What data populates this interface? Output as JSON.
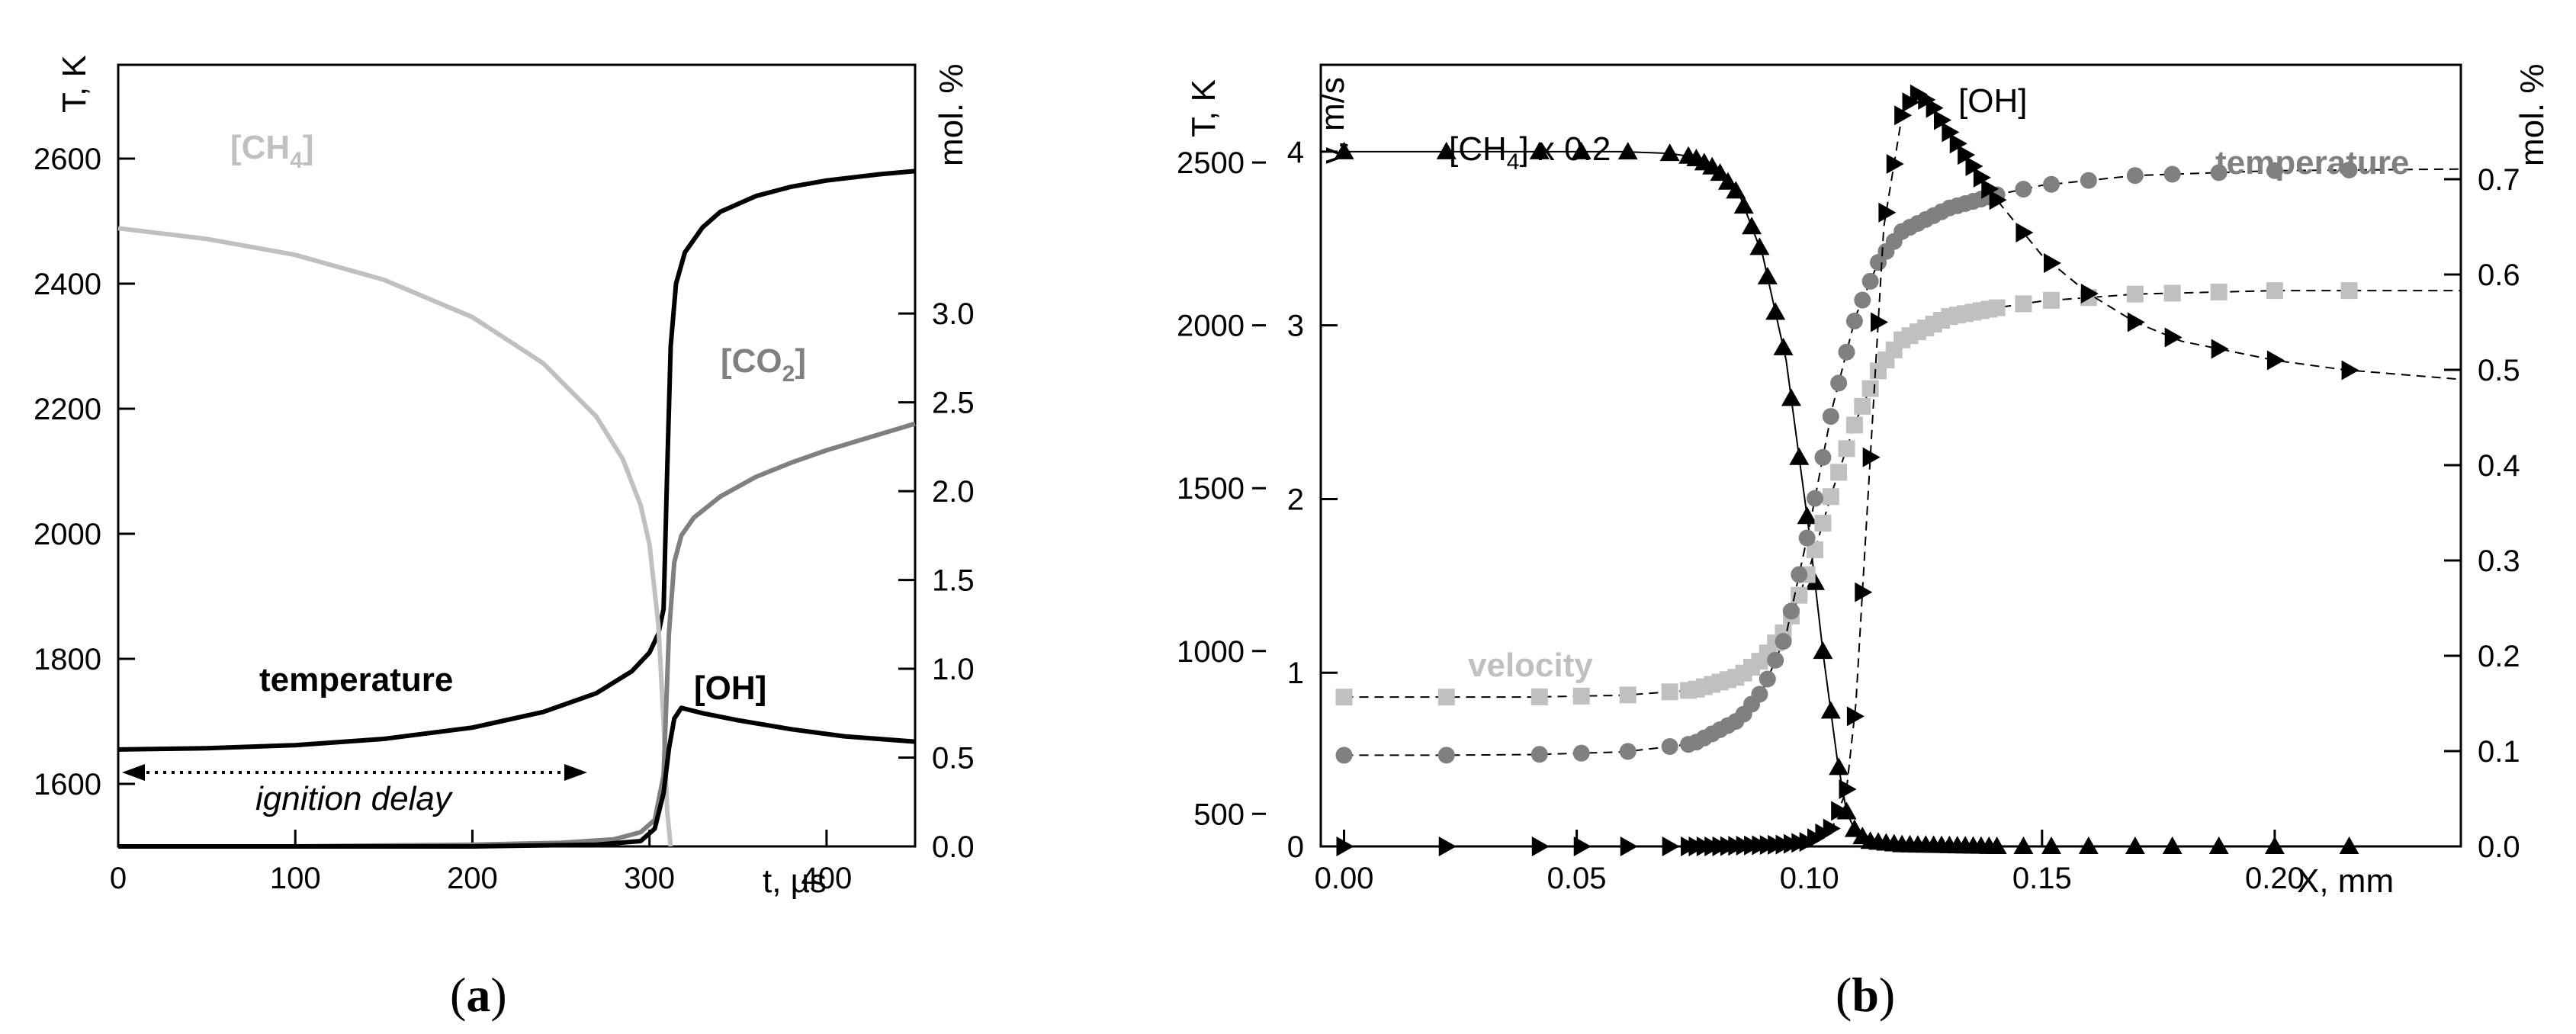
{
  "chart_data": [
    {
      "type": "line",
      "panel": "a",
      "caption_open": "(",
      "caption_letter": "a",
      "caption_close": ")",
      "xlabel": "t, µs",
      "ylabel_left": "T, K",
      "ylabel_right": "mol. %",
      "xlim": [
        0,
        450
      ],
      "ylim_left": [
        1500,
        2750
      ],
      "ylim_right": [
        0,
        4.4
      ],
      "x_ticks": [
        "0",
        "100",
        "200",
        "300",
        "400"
      ],
      "y_left_ticks": [
        "1600",
        "1800",
        "2000",
        "2200",
        "2400",
        "2600"
      ],
      "y_right_ticks": [
        "0.0",
        "0.5",
        "1.0",
        "1.5",
        "2.0",
        "2.5",
        "3.0"
      ],
      "annotation": "ignition delay",
      "series": [
        {
          "name": "temperature",
          "label": "temperature",
          "axis": "left",
          "color": "#000000",
          "x": [
            0,
            50,
            100,
            150,
            200,
            240,
            270,
            290,
            300,
            305,
            308,
            310,
            312,
            315,
            320,
            330,
            340,
            360,
            380,
            400,
            430,
            450
          ],
          "y": [
            1655,
            1657,
            1662,
            1672,
            1690,
            1715,
            1745,
            1780,
            1810,
            1840,
            1880,
            2100,
            2300,
            2400,
            2450,
            2490,
            2515,
            2540,
            2555,
            2565,
            2575,
            2580
          ]
        },
        {
          "name": "[CH4]",
          "label_main": "[CH",
          "label_sub": "4",
          "label_close": "]",
          "axis": "right",
          "color": "#c0c0c0",
          "x": [
            0,
            50,
            100,
            150,
            200,
            240,
            270,
            285,
            295,
            300,
            305,
            308,
            310,
            312
          ],
          "y": [
            3.48,
            3.42,
            3.33,
            3.19,
            2.98,
            2.72,
            2.42,
            2.18,
            1.92,
            1.7,
            1.25,
            0.7,
            0.2,
            0.0
          ]
        },
        {
          "name": "[CO2]",
          "label_main": "[CO",
          "label_sub": "2",
          "label_close": "]",
          "axis": "right",
          "color": "#808080",
          "x": [
            0,
            100,
            200,
            250,
            280,
            295,
            303,
            308,
            311,
            314,
            318,
            325,
            340,
            360,
            380,
            400,
            430,
            450
          ],
          "y": [
            0.0,
            0.0,
            0.01,
            0.02,
            0.04,
            0.08,
            0.15,
            0.4,
            1.2,
            1.6,
            1.75,
            1.85,
            1.97,
            2.08,
            2.16,
            2.23,
            2.32,
            2.38
          ]
        },
        {
          "name": "[OH]",
          "label": "[OH]",
          "axis": "right",
          "color": "#000000",
          "x": [
            0,
            100,
            200,
            270,
            295,
            303,
            308,
            311,
            314,
            318,
            322,
            330,
            350,
            380,
            410,
            450
          ],
          "y": [
            0.0,
            0.0,
            0.0,
            0.01,
            0.03,
            0.1,
            0.3,
            0.55,
            0.72,
            0.78,
            0.77,
            0.75,
            0.71,
            0.66,
            0.62,
            0.59
          ]
        }
      ]
    },
    {
      "type": "line",
      "panel": "b",
      "caption_open": "(",
      "caption_letter": "b",
      "caption_close": ")",
      "xlabel": "X, mm",
      "ylabel_T": "T, K",
      "ylabel_v": "v, m/s",
      "ylabel_right": "mol. %",
      "xlim": [
        -0.005,
        0.24
      ],
      "ylim_T": [
        400,
        2800
      ],
      "ylim_v": [
        0,
        4.5
      ],
      "ylim_right": [
        0,
        0.82
      ],
      "x_ticks": [
        "0.00",
        "0.05",
        "0.10",
        "0.15",
        "0.20"
      ],
      "y_T_ticks": [
        "500",
        "1000",
        "1500",
        "2000",
        "2500"
      ],
      "y_v_ticks": [
        "0",
        "1",
        "2",
        "3",
        "4"
      ],
      "y_right_ticks": [
        "0.0",
        "0.1",
        "0.2",
        "0.3",
        "0.4",
        "0.5",
        "0.6",
        "0.7"
      ],
      "series": [
        {
          "name": "[CH4] x 0.2",
          "label_main": "[CH",
          "label_sub": "4",
          "label_close": "] x 0.2",
          "axis": "v",
          "marker": "triangle-up",
          "color": "#000000",
          "x": [
            0,
            0.02,
            0.04,
            0.05,
            0.06,
            0.07,
            0.075,
            0.08,
            0.085,
            0.09,
            0.095,
            0.1,
            0.103,
            0.106,
            0.108,
            0.11,
            0.113,
            0.12,
            0.14,
            0.17,
            0.2,
            0.215,
            0.24
          ],
          "y": [
            4.0,
            4.0,
            4.0,
            4.0,
            4.0,
            3.99,
            3.97,
            3.9,
            3.75,
            3.4,
            2.8,
            1.8,
            1.1,
            0.5,
            0.2,
            0.08,
            0.03,
            0.01,
            0.0,
            0.0,
            0.0,
            0.0,
            0.0
          ]
        },
        {
          "name": "velocity",
          "label": "velocity",
          "axis": "v",
          "marker": "square",
          "color": "#c0c0c0",
          "x": [
            0,
            0.02,
            0.04,
            0.06,
            0.075,
            0.085,
            0.09,
            0.095,
            0.1,
            0.105,
            0.11,
            0.115,
            0.12,
            0.13,
            0.14,
            0.15,
            0.17,
            0.2,
            0.24
          ],
          "y": [
            0.86,
            0.86,
            0.86,
            0.87,
            0.9,
            0.98,
            1.08,
            1.25,
            1.6,
            2.05,
            2.45,
            2.75,
            2.92,
            3.05,
            3.1,
            3.14,
            3.18,
            3.2,
            3.2
          ]
        },
        {
          "name": "temperature",
          "label": "temperature",
          "axis": "T",
          "marker": "circle",
          "color": "#808080",
          "x": [
            0,
            0.02,
            0.04,
            0.06,
            0.075,
            0.085,
            0.09,
            0.095,
            0.1,
            0.105,
            0.11,
            0.115,
            0.12,
            0.13,
            0.14,
            0.15,
            0.17,
            0.2,
            0.24
          ],
          "y": [
            680,
            680,
            682,
            690,
            715,
            790,
            880,
            1050,
            1380,
            1750,
            2030,
            2200,
            2290,
            2360,
            2400,
            2430,
            2460,
            2475,
            2480
          ]
        },
        {
          "name": "[OH]",
          "label": "[OH]",
          "axis": "right",
          "marker": "triangle-right",
          "color": "#000000",
          "x": [
            0,
            0.05,
            0.08,
            0.095,
            0.1,
            0.105,
            0.108,
            0.11,
            0.113,
            0.116,
            0.12,
            0.123,
            0.126,
            0.13,
            0.14,
            0.15,
            0.16,
            0.17,
            0.18,
            0.2,
            0.215,
            0.24
          ],
          "y": [
            0.0,
            0.0,
            0.0,
            0.002,
            0.005,
            0.02,
            0.06,
            0.15,
            0.4,
            0.65,
            0.77,
            0.79,
            0.78,
            0.75,
            0.68,
            0.62,
            0.58,
            0.55,
            0.53,
            0.51,
            0.5,
            0.49
          ]
        }
      ]
    }
  ]
}
